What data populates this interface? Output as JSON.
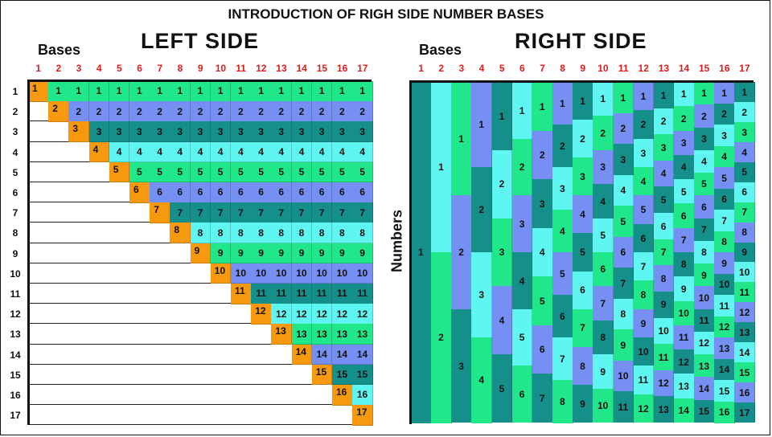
{
  "title": "INTRODUCTION OF RIGH SIDE NUMBER BASES",
  "left": {
    "title": "LEFT SIDE",
    "bases_label": "Bases"
  },
  "right": {
    "title": "RIGHT SIDE",
    "bases_label": "Bases",
    "numbers_label": "Numbers"
  },
  "n": 17,
  "colors": {
    "header_numbers": "#e01b1b",
    "diagonal": "#f7990f",
    "palette": [
      "#20e88a",
      "#7590f2",
      "#148f8a",
      "#5ff5f0"
    ]
  }
}
